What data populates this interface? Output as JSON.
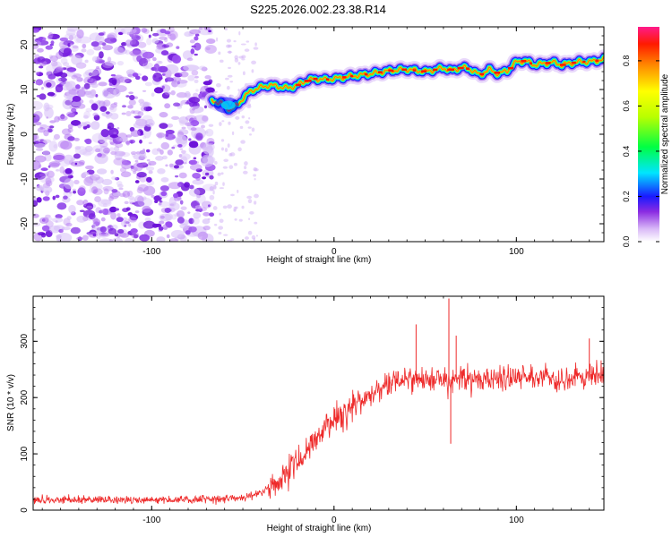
{
  "figure": {
    "title": "S225.2026.002.23.38.R14"
  },
  "chart_data": [
    {
      "type": "heatmap",
      "xlabel": "Height of straight line (km)",
      "ylabel": "Frequency (Hz)",
      "xlim": [
        -165,
        148
      ],
      "ylim": [
        -24,
        24
      ],
      "xticks": [
        -100,
        0,
        100
      ],
      "yticks": [
        20,
        10,
        0,
        -10,
        -20
      ],
      "colorbar": {
        "label": "Normalized spectral amplitude",
        "range": [
          0.0,
          0.95
        ],
        "ticks": [
          "0.0",
          "0.2",
          "0.4",
          "0.6",
          "0.8"
        ]
      },
      "noise_region_x": [
        -165,
        -67
      ],
      "ridge": {
        "x": [
          -67,
          -62,
          -57,
          -53,
          -49,
          -45,
          -40,
          -35,
          -30,
          -25,
          -20,
          -15,
          -10,
          -5,
          0,
          10,
          20,
          30,
          40,
          50,
          60,
          65,
          70,
          75,
          80,
          85,
          90,
          95,
          100,
          105,
          110,
          115,
          120,
          125,
          130,
          135,
          140,
          145,
          148
        ],
        "y": [
          7.5,
          7.0,
          5.5,
          6.5,
          8.5,
          9.8,
          10.5,
          11.0,
          10.6,
          10.3,
          11.0,
          12.0,
          12.4,
          12.2,
          12.4,
          13.0,
          13.5,
          14.2,
          14.5,
          14.0,
          14.8,
          14.2,
          15.0,
          14.5,
          13.2,
          14.5,
          13.5,
          14.2,
          16.2,
          16.4,
          15.5,
          15.8,
          16.1,
          15.5,
          15.9,
          16.2,
          16.2,
          16.5,
          16.8
        ]
      }
    },
    {
      "type": "line",
      "xlabel": "Height of straight line (km)",
      "ylabel": "SNR (10 * v/v)",
      "xlim": [
        -165,
        148
      ],
      "ylim": [
        0,
        380
      ],
      "xticks": [
        -100,
        0,
        100
      ],
      "yticks": [
        0,
        100,
        200,
        300
      ],
      "line_color": "#ee2a2a",
      "series": [
        {
          "x": [
            -165,
            -140,
            -120,
            -100,
            -80,
            -60,
            -50,
            -40,
            -30,
            -20,
            -10,
            0,
            10,
            20,
            25,
            30,
            40,
            60,
            80,
            100,
            120,
            148
          ],
          "values": [
            18,
            18,
            18,
            18,
            19,
            20,
            22,
            30,
            55,
            90,
            125,
            160,
            185,
            205,
            215,
            222,
            228,
            232,
            234,
            236,
            236,
            236
          ]
        }
      ],
      "spikes": [
        {
          "x": 63,
          "y": 376
        },
        {
          "x": 64,
          "y": 118
        },
        {
          "x": 67,
          "y": 310
        },
        {
          "x": 45,
          "y": 330
        },
        {
          "x": 140,
          "y": 305
        }
      ]
    }
  ]
}
